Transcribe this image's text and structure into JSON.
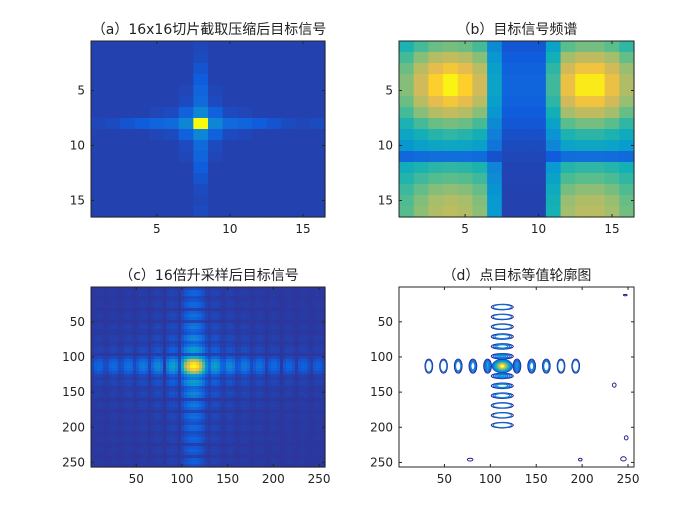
{
  "chart_data": [
    {
      "type": "heatmap",
      "title": "（a）16x16切片截取压缩后目标信号",
      "grid_size": 16,
      "xticks": [
        "5",
        "10",
        "15"
      ],
      "yticks": [
        "5",
        "10",
        "15"
      ],
      "peak": {
        "row": 8,
        "col": 8
      },
      "colormap": "parula"
    },
    {
      "type": "heatmap",
      "title": "（b）目标信号频谱",
      "grid_size": 16,
      "xticks": [
        "5",
        "10",
        "15"
      ],
      "yticks": [
        "5",
        "10",
        "15"
      ],
      "notch_columns": [
        8,
        9,
        10
      ],
      "colormap": "parula"
    },
    {
      "type": "heatmap",
      "title": "（c）16倍升采样后目标信号",
      "grid_size": 256,
      "xticks": [
        "50",
        "100",
        "150",
        "200",
        "250"
      ],
      "yticks": [
        "50",
        "100",
        "150",
        "200",
        "250"
      ],
      "peak": {
        "row": 113,
        "col": 113
      },
      "colormap": "parula"
    },
    {
      "type": "contour",
      "title": "（d）点目标等值轮廓图",
      "grid_size": 256,
      "xticks": [
        "50",
        "100",
        "150",
        "200",
        "250"
      ],
      "yticks": [
        "50",
        "100",
        "150",
        "200",
        "250"
      ],
      "center": {
        "row": 113,
        "col": 113
      },
      "colormap": "parula"
    }
  ]
}
